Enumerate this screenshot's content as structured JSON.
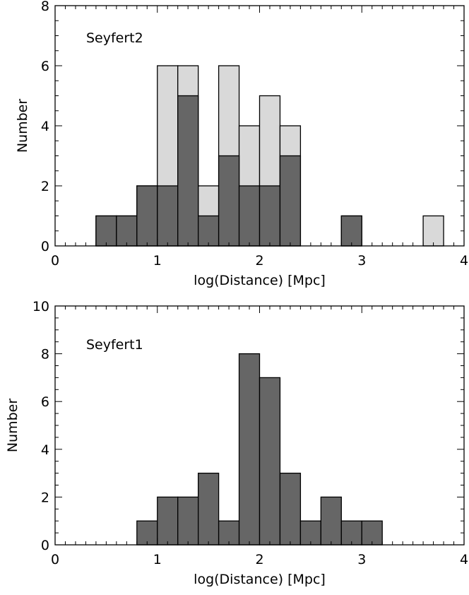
{
  "colors": {
    "dark_fill": "#666666",
    "light_fill": "#d9d9d9",
    "axis": "#000000"
  },
  "chart_data": [
    {
      "type": "bar",
      "histogram": true,
      "label": "Seyfert2",
      "xlabel": "log(Distance) [Mpc]",
      "ylabel": "Number",
      "xlim": [
        0,
        4
      ],
      "ylim": [
        0,
        8
      ],
      "xticks": [
        0,
        1,
        2,
        3,
        4
      ],
      "yticks": [
        0,
        2,
        4,
        6,
        8
      ],
      "bin_edges": [
        0.4,
        0.6,
        0.8,
        1.0,
        1.2,
        1.4,
        1.6,
        1.8,
        2.0,
        2.2,
        2.4,
        2.6,
        2.8,
        3.0,
        3.2,
        3.4,
        3.6,
        3.8
      ],
      "series": [
        {
          "fill": "light",
          "values": [
            1,
            1,
            2,
            6,
            6,
            2,
            6,
            4,
            5,
            4,
            0,
            0,
            1,
            0,
            0,
            0,
            1
          ]
        },
        {
          "fill": "dark",
          "values": [
            1,
            1,
            2,
            2,
            5,
            1,
            3,
            2,
            2,
            3,
            0,
            0,
            1,
            0,
            0,
            0,
            0
          ]
        }
      ]
    },
    {
      "type": "bar",
      "histogram": true,
      "label": "Seyfert1",
      "xlabel": "log(Distance) [Mpc]",
      "ylabel": "Number",
      "xlim": [
        0,
        4
      ],
      "ylim": [
        0,
        10
      ],
      "xticks": [
        0,
        1,
        2,
        3,
        4
      ],
      "yticks": [
        0,
        2,
        4,
        6,
        8,
        10
      ],
      "bin_edges": [
        0.8,
        1.0,
        1.2,
        1.4,
        1.6,
        1.8,
        2.0,
        2.2,
        2.4,
        2.6,
        2.8,
        3.0,
        3.2
      ],
      "series": [
        {
          "fill": "dark",
          "values": [
            1,
            2,
            2,
            3,
            1,
            8,
            7,
            3,
            1,
            2,
            1,
            1
          ]
        }
      ]
    }
  ]
}
